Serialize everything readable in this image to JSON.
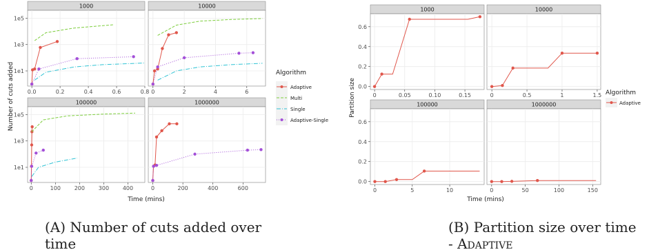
{
  "figure_left": {
    "caption": "(A) Number of cuts added over time",
    "caption_line1": "(A) Number of cuts added over",
    "caption_line2": "time",
    "ylabel": "Number of cuts added",
    "xlabel": "Time (mins)",
    "legend": {
      "title": "Algorithm",
      "entries": [
        {
          "name": "Adaptive",
          "color": "#e0564b",
          "style": "solid"
        },
        {
          "name": "Multi",
          "color": "#7ccd3c",
          "style": "dashed"
        },
        {
          "name": "Single",
          "color": "#2fc3d4",
          "style": "dashdot"
        },
        {
          "name": "Adaptive-Single",
          "color": "#a34fd8",
          "style": "dotted"
        }
      ]
    }
  },
  "figure_right": {
    "caption_line1": "(B) Partition size over time",
    "caption_line2": "- Adaptive",
    "ylabel": "Partition size",
    "xlabel": "Time (mins)",
    "legend": {
      "title": "Algorithm",
      "entries": [
        {
          "name": "Adaptive",
          "color": "#e0564b",
          "style": "solid"
        }
      ]
    }
  },
  "chart_data": [
    {
      "type": "line",
      "title": "Number of cuts added",
      "ylabel": "Number of cuts added",
      "xlabel": "Time (mins)",
      "yscale": "log",
      "yticks": [
        "1e+01",
        "1e+03",
        "1e+05"
      ],
      "ytick_labels": [
        "1e1",
        "1e3",
        "1e5"
      ],
      "facets": [
        {
          "label": "1000",
          "xlim": [
            -0.03,
            0.8
          ],
          "xticks": [
            0.0,
            0.2,
            0.4,
            0.6,
            0.8
          ],
          "xtick_labels": [
            "0.0",
            "0.2",
            "0.4",
            "0.6",
            "0.8"
          ],
          "series": [
            {
              "name": "Adaptive",
              "x": [
                0.0,
                0.005,
                0.02,
                0.06,
                0.18
              ],
              "y": [
                1,
                12,
                14,
                600,
                1700
              ]
            },
            {
              "name": "Multi",
              "x": [
                0.02,
                0.1,
                0.3,
                0.58
              ],
              "y": [
                2000,
                8000,
                18000,
                32000
              ]
            },
            {
              "name": "Single",
              "x": [
                0.02,
                0.1,
                0.3,
                0.5,
                0.8
              ],
              "y": [
                2,
                8,
                20,
                30,
                40
              ]
            },
            {
              "name": "Adaptive-Single",
              "x": [
                0.0,
                0.05,
                0.32,
                0.72
              ],
              "y": [
                1,
                14,
                85,
                120
              ]
            }
          ]
        },
        {
          "label": "10000",
          "xlim": [
            -0.3,
            7.2
          ],
          "xticks": [
            0,
            2,
            4,
            6
          ],
          "xtick_labels": [
            "0",
            "2",
            "4",
            "6"
          ],
          "series": [
            {
              "name": "Adaptive",
              "x": [
                0.0,
                0.1,
                0.3,
                0.6,
                1.0,
                1.5
              ],
              "y": [
                1,
                10,
                14,
                500,
                5500,
                8000
              ]
            },
            {
              "name": "Multi",
              "x": [
                0.3,
                1.5,
                3,
                5,
                7
              ],
              "y": [
                5000,
                30000,
                60000,
                80000,
                95000
              ]
            },
            {
              "name": "Single",
              "x": [
                0.3,
                1.5,
                3,
                5,
                7
              ],
              "y": [
                2,
                10,
                20,
                30,
                38
              ]
            },
            {
              "name": "Adaptive-Single",
              "x": [
                0.0,
                0.3,
                2.0,
                5.5,
                6.4
              ],
              "y": [
                1,
                20,
                100,
                220,
                240
              ]
            }
          ]
        },
        {
          "label": "100000",
          "xlim": [
            -15,
            470
          ],
          "xticks": [
            0,
            100,
            200,
            300,
            400
          ],
          "xtick_labels": [
            "0",
            "100",
            "200",
            "300",
            "400"
          ],
          "series": [
            {
              "name": "Adaptive",
              "x": [
                0,
                1,
                2,
                3,
                4
              ],
              "y": [
                1,
                12,
                500,
                5000,
                12000
              ]
            },
            {
              "name": "Multi",
              "x": [
                2,
                50,
                150,
                300,
                430
              ],
              "y": [
                5000,
                40000,
                80000,
                110000,
                130000
              ]
            },
            {
              "name": "Single",
              "x": [
                2,
                30,
                100,
                190
              ],
              "y": [
                2,
                10,
                25,
                50
              ]
            },
            {
              "name": "Adaptive-Single",
              "x": [
                0,
                2,
                20,
                50
              ],
              "y": [
                1,
                12,
                120,
                200
              ]
            }
          ]
        },
        {
          "label": "1000000",
          "xlim": [
            -30,
            750
          ],
          "xticks": [
            0,
            200,
            400,
            600
          ],
          "xtick_labels": [
            "0",
            "200",
            "400",
            "600"
          ],
          "series": [
            {
              "name": "Adaptive",
              "x": [
                0,
                5,
                15,
                25,
                60,
                110,
                160
              ],
              "y": [
                1,
                12,
                15,
                2000,
                6000,
                20000,
                20000
              ]
            },
            {
              "name": "Multi",
              "x": [],
              "y": []
            },
            {
              "name": "Single",
              "x": [],
              "y": []
            },
            {
              "name": "Adaptive-Single",
              "x": [
                0,
                5,
                25,
                280,
                630,
                720
              ],
              "y": [
                1,
                12,
                14,
                100,
                200,
                220
              ]
            }
          ]
        }
      ],
      "legend_position": "right"
    },
    {
      "type": "line",
      "title": "Partition size",
      "ylabel": "Partition size",
      "xlabel": "Time (mins)",
      "ylim": [
        -0.03,
        0.73
      ],
      "yticks": [
        0.0,
        0.2,
        0.4,
        0.6
      ],
      "ytick_labels": [
        "0.0",
        "0.2",
        "0.4",
        "0.6"
      ],
      "facets": [
        {
          "label": "1000",
          "xlim": [
            -0.007,
            0.182
          ],
          "xticks": [
            0.0,
            0.05,
            0.1,
            0.15
          ],
          "xtick_labels": [
            "0",
            "0.05",
            "0.10",
            "0.15"
          ],
          "series": [
            {
              "name": "Adaptive",
              "x": [
                0,
                0.012,
                0.03,
                0.058,
                0.155,
                0.175
              ],
              "y": [
                0.0,
                0.125,
                0.125,
                0.675,
                0.675,
                0.7
              ],
              "markers": [
                0,
                1,
                3,
                5
              ]
            }
          ]
        },
        {
          "label": "10000",
          "xlim": [
            -0.07,
            1.55
          ],
          "xticks": [
            0,
            0.5,
            1.0,
            1.5
          ],
          "xtick_labels": [
            "0",
            "0.5",
            "1",
            "1.5"
          ],
          "series": [
            {
              "name": "Adaptive",
              "x": [
                0,
                0.15,
                0.3,
                0.8,
                1.0,
                1.5
              ],
              "y": [
                0.0,
                0.01,
                0.185,
                0.185,
                0.335,
                0.335
              ],
              "markers": [
                0,
                1,
                2,
                4,
                5
              ]
            }
          ]
        },
        {
          "label": "100000",
          "xlim": [
            -0.6,
            14.6
          ],
          "xticks": [
            0,
            5,
            10
          ],
          "xtick_labels": [
            "0",
            "5",
            "10"
          ],
          "series": [
            {
              "name": "Adaptive",
              "x": [
                0,
                1.4,
                2.9,
                5.0,
                6.6,
                14
              ],
              "y": [
                0.0,
                0.0,
                0.02,
                0.02,
                0.105,
                0.105
              ],
              "markers": [
                0,
                1,
                2,
                4
              ]
            }
          ]
        },
        {
          "label": "1000000",
          "xlim": [
            -7,
            162
          ],
          "xticks": [
            0,
            50,
            100,
            150
          ],
          "xtick_labels": [
            "0",
            "50",
            "100",
            "150"
          ],
          "series": [
            {
              "name": "Adaptive",
              "x": [
                0,
                15,
                30,
                68,
                155
              ],
              "y": [
                0.0,
                0.0,
                0.002,
                0.01,
                0.01
              ],
              "markers": [
                0,
                1,
                2,
                3
              ]
            }
          ]
        }
      ],
      "legend_position": "right"
    }
  ]
}
